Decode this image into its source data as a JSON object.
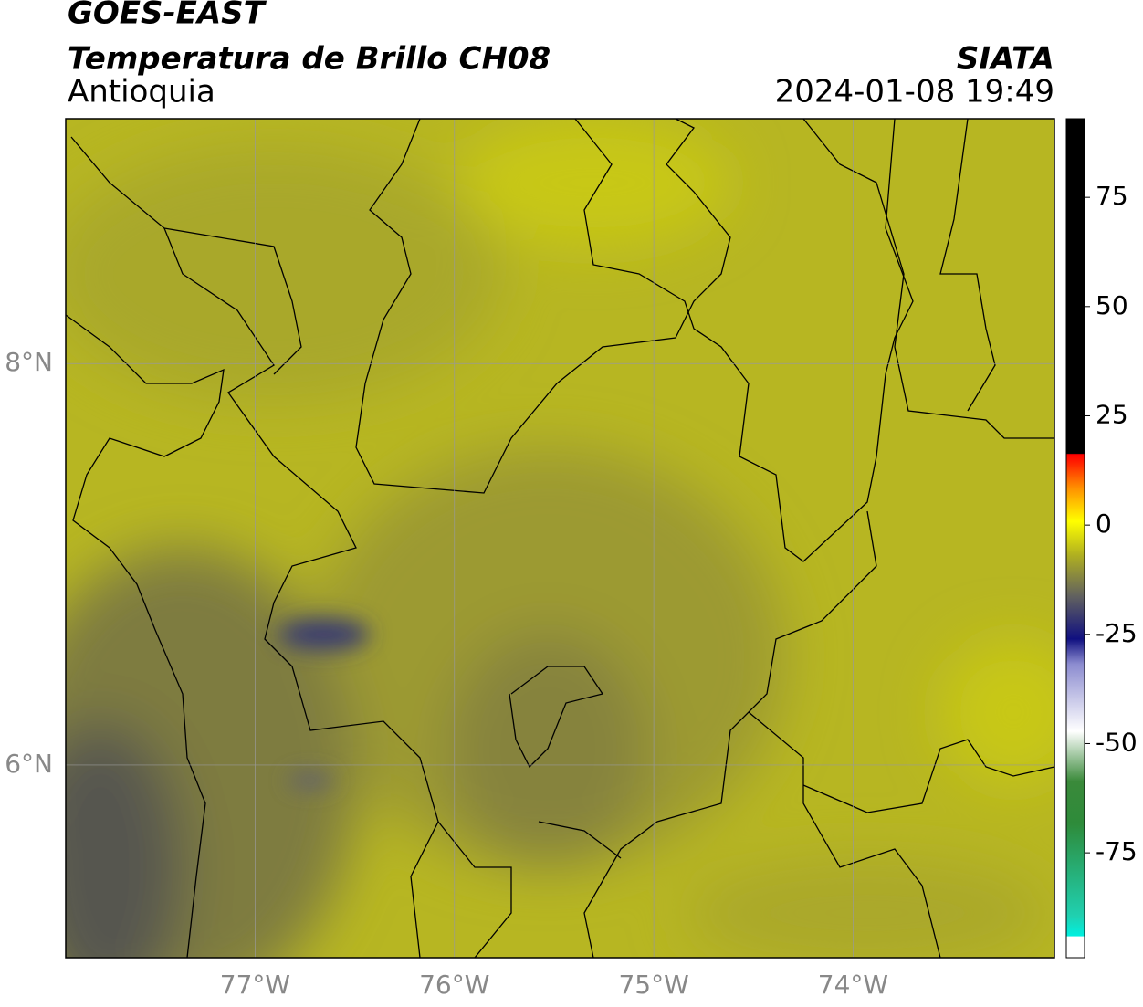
{
  "header": {
    "title": "GOES-EAST",
    "subtitle": "Temperatura de Brillo CH08",
    "region": "Antioquia",
    "source": "SIATA",
    "datetime": "2024-01-08 19:49"
  },
  "map": {
    "xlim": [
      -77.95,
      -72.99
    ],
    "ylim": [
      5.04,
      9.22
    ],
    "xticks": [
      {
        "value": -77,
        "label": "77°W"
      },
      {
        "value": -76,
        "label": "76°W"
      },
      {
        "value": -75,
        "label": "75°W"
      },
      {
        "value": -74,
        "label": "74°W"
      }
    ],
    "yticks": [
      {
        "value": 8,
        "label": "8°N"
      },
      {
        "value": 6,
        "label": "6°N"
      }
    ],
    "grid": true
  },
  "colorbar": {
    "lim": [
      -99,
      93
    ],
    "ticks": [
      75,
      50,
      25,
      0,
      -25,
      -50,
      -75
    ]
  }
}
